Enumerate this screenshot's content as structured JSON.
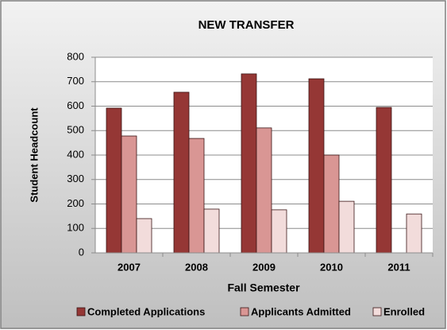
{
  "chart_data": {
    "type": "bar",
    "title": "NEW TRANSFER",
    "x_label": "Fall Semester",
    "y_label": "Student Headcount",
    "categories": [
      "2007",
      "2008",
      "2009",
      "2010",
      "2011"
    ],
    "series": [
      {
        "name": "Completed Applications",
        "color": "#953735",
        "values": [
          592,
          657,
          732,
          712,
          595
        ]
      },
      {
        "name": "Applicants Admitted",
        "color": "#d99694",
        "values": [
          478,
          468,
          511,
          400,
          null
        ]
      },
      {
        "name": "Enrolled",
        "color": "#f2dcdb",
        "values": [
          140,
          179,
          176,
          211,
          159
        ]
      }
    ],
    "ylim": [
      0,
      800
    ],
    "yticks": [
      0,
      100,
      200,
      300,
      400,
      500,
      600,
      700,
      800
    ],
    "grid": true,
    "legend": "bottom"
  }
}
